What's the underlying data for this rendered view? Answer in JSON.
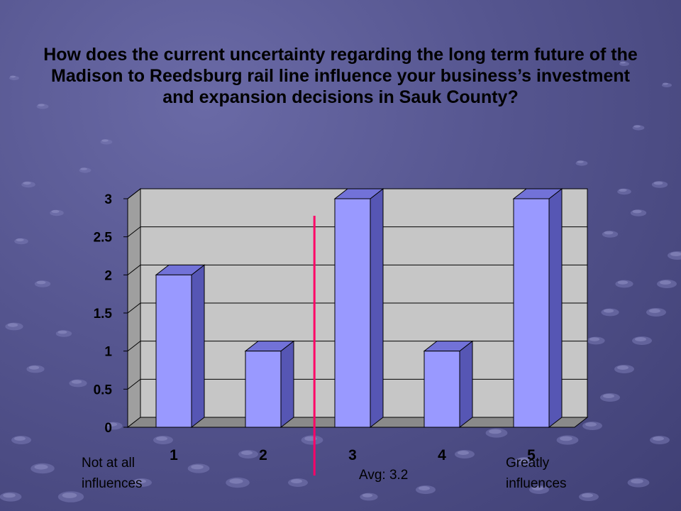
{
  "title": "How does the current uncertainty regarding the long term future of the Madison to Reedsburg rail line influence your business’s investment and expansion decisions in Sauk County?",
  "chart_data": {
    "type": "bar",
    "categories": [
      "1",
      "2",
      "3",
      "4",
      "5"
    ],
    "values": [
      2,
      1,
      3,
      1,
      3
    ],
    "ylim": [
      0,
      3
    ],
    "yticks": [
      "0",
      "0.5",
      "1",
      "1.5",
      "2",
      "2.5",
      "3"
    ],
    "grid": true,
    "three_d": true,
    "bar_color": "#9999ff",
    "average": {
      "value": 3.2,
      "label": "Avg: 3.2",
      "color": "#ff0066"
    },
    "annotations": {
      "left": "Not at all\ninfluences",
      "right": "Greatly\ninfluences"
    }
  }
}
